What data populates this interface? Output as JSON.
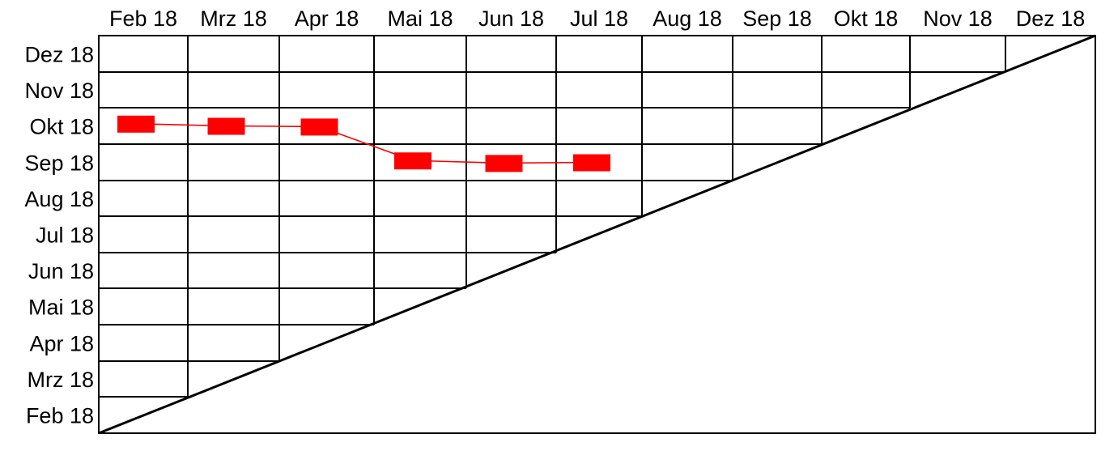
{
  "chart_data": {
    "type": "line",
    "title": "",
    "xlabel": "",
    "ylabel": "",
    "x_ticks": [
      "Feb 18",
      "Mrz 18",
      "Apr 18",
      "Mai 18",
      "Jun 18",
      "Jul 18",
      "Aug 18",
      "Sep 18",
      "Okt 18",
      "Nov 18",
      "Dez 18"
    ],
    "y_ticks": [
      "Dez 18",
      "Nov 18",
      "Okt 18",
      "Sep 18",
      "Aug 18",
      "Jul 18",
      "Jun 18",
      "Mai 18",
      "Apr 18",
      "Mrz 18",
      "Feb 18"
    ],
    "grid": true,
    "legend": "none",
    "series": [
      {
        "x": [
          "Feb 18",
          "Mrz 18",
          "Apr 18",
          "Mai 18",
          "Jun 18",
          "Jul 18"
        ],
        "y": [
          8.05,
          8.0,
          7.98,
          7.05,
          6.98,
          7.0
        ],
        "color": "#ff0000",
        "marker": "rectangle"
      }
    ]
  }
}
